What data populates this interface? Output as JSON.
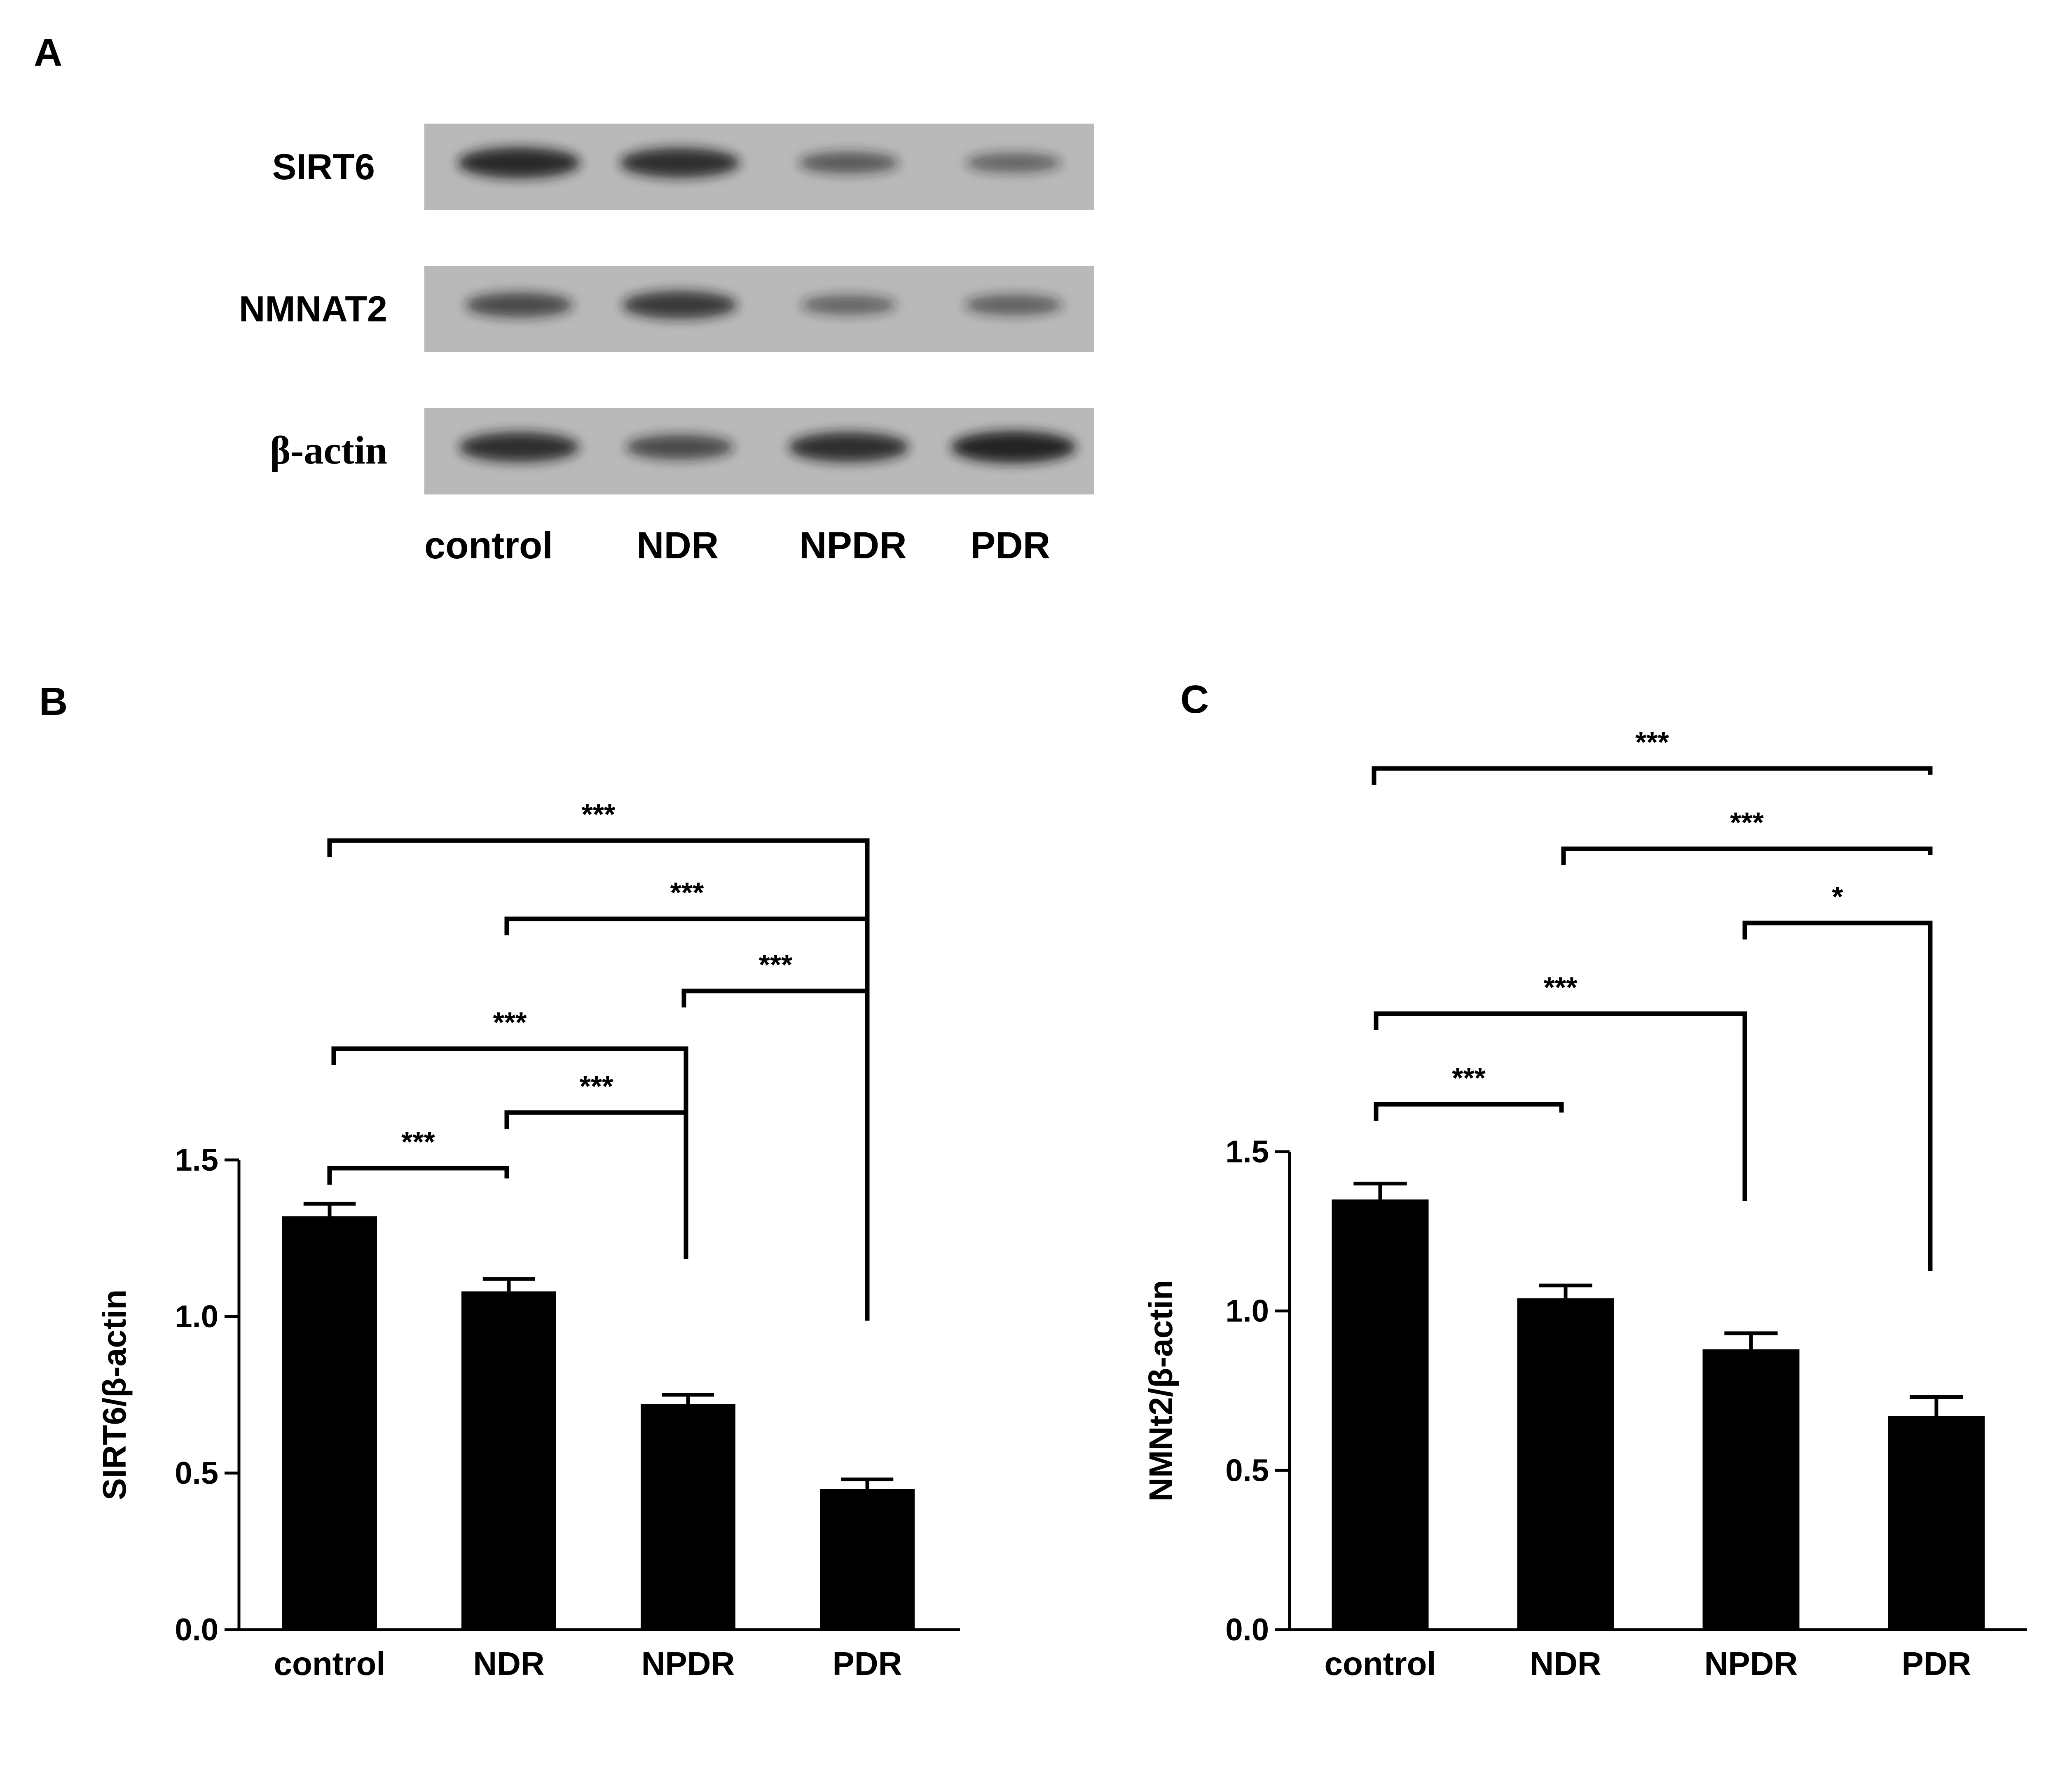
{
  "panels": {
    "a": "A",
    "b": "B",
    "c": "C"
  },
  "blot": {
    "rows": [
      {
        "label": "SIRT6",
        "intensities": [
          0.9,
          0.85,
          0.45,
          0.35
        ]
      },
      {
        "label": "NMNAT2",
        "intensities": [
          0.6,
          0.75,
          0.35,
          0.4
        ]
      },
      {
        "label": "β-actin",
        "intensities": [
          0.85,
          0.6,
          0.85,
          0.95
        ]
      }
    ],
    "lanes": [
      "control",
      "NDR",
      "NPDR",
      "PDR"
    ]
  },
  "chart_data": [
    {
      "type": "bar",
      "panel": "B",
      "categories": [
        "control",
        "NDR",
        "NPDR",
        "PDR"
      ],
      "values": [
        1.32,
        1.08,
        0.72,
        0.45
      ],
      "errors": [
        0.04,
        0.04,
        0.03,
        0.03
      ],
      "ylabel": "SIRT6/β-actin",
      "ylim": [
        0,
        1.5
      ],
      "yticks": [
        "0.0",
        "0.5",
        "1.0",
        "1.5"
      ],
      "significance": [
        {
          "from": "control",
          "to": "PDR",
          "label": "***"
        },
        {
          "from": "NDR",
          "to": "PDR",
          "label": "***"
        },
        {
          "from": "NPDR",
          "to": "PDR",
          "label": "***"
        },
        {
          "from": "control",
          "to": "NPDR",
          "label": "***"
        },
        {
          "from": "NDR",
          "to": "NPDR",
          "label": "***"
        },
        {
          "from": "control",
          "to": "NDR",
          "label": "***"
        }
      ]
    },
    {
      "type": "bar",
      "panel": "C",
      "categories": [
        "control",
        "NDR",
        "NPDR",
        "PDR"
      ],
      "values": [
        1.35,
        1.04,
        0.88,
        0.67
      ],
      "errors": [
        0.05,
        0.04,
        0.05,
        0.06
      ],
      "ylabel": "NMNt2/β-actin",
      "ylim": [
        0,
        1.5
      ],
      "yticks": [
        "0.0",
        "0.5",
        "1.0",
        "1.5"
      ],
      "significance": [
        {
          "from": "control",
          "to": "PDR",
          "label": "***"
        },
        {
          "from": "NDR",
          "to": "PDR",
          "label": "***"
        },
        {
          "from": "NPDR",
          "to": "PDR",
          "label": "*"
        },
        {
          "from": "control",
          "to": "NPDR",
          "label": "***"
        },
        {
          "from": "control",
          "to": "NDR",
          "label": "***"
        }
      ]
    }
  ]
}
